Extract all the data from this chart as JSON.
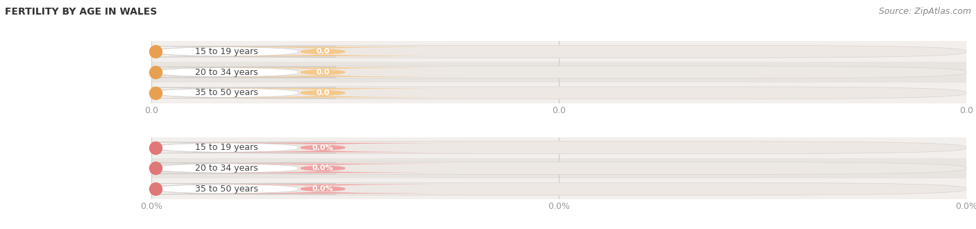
{
  "title": "FERTILITY BY AGE IN WALES",
  "source": "Source: ZipAtlas.com",
  "groups": [
    {
      "labels": [
        "15 to 19 years",
        "20 to 34 years",
        "35 to 50 years"
      ],
      "values": [
        0.0,
        0.0,
        0.0
      ],
      "bar_color": "#f5c88a",
      "bar_bg_color": "#ede8e4",
      "dot_color": "#e8a050",
      "label_bg_color": "#ffffff",
      "value_label_color": "#f5c88a",
      "tick_labels": [
        "0.0",
        "0.0",
        "0.0"
      ],
      "tick_color": "#999999"
    },
    {
      "labels": [
        "15 to 19 years",
        "20 to 34 years",
        "35 to 50 years"
      ],
      "values": [
        0.0,
        0.0,
        0.0
      ],
      "bar_color": "#f0a0a0",
      "bar_bg_color": "#ede8e4",
      "dot_color": "#e07878",
      "label_bg_color": "#ffffff",
      "value_label_color": "#f0a0a0",
      "tick_labels": [
        "0.0%",
        "0.0%",
        "0.0%"
      ],
      "tick_color": "#999999"
    }
  ],
  "row_bg_colors": [
    "#f2efed",
    "#e8e4e0"
  ],
  "fig_bg": "#ffffff",
  "title_fontsize": 10,
  "label_fontsize": 9,
  "value_fontsize": 8,
  "tick_fontsize": 9,
  "source_fontsize": 9
}
